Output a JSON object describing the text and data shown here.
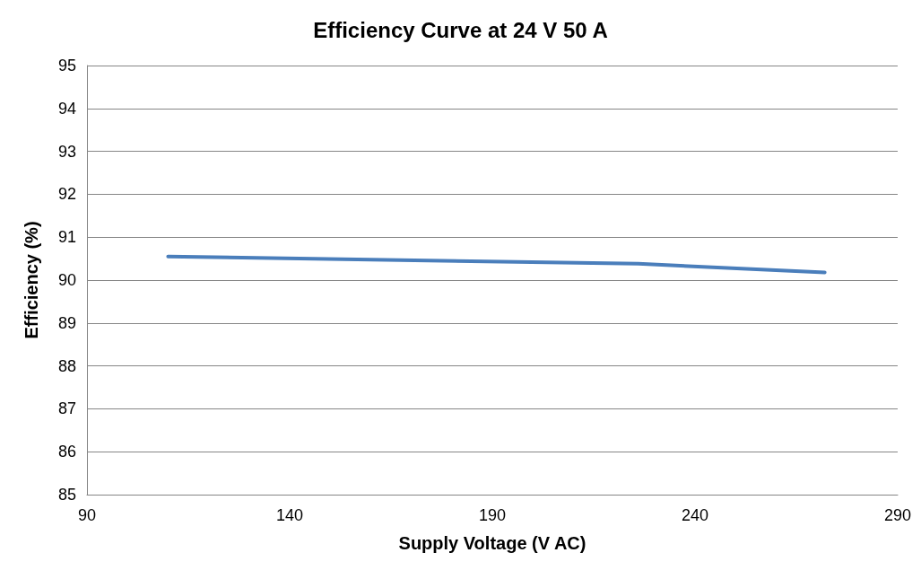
{
  "chart_data": {
    "type": "line",
    "title": "Efficiency Curve at 24 V 50 A",
    "xlabel": "Supply Voltage (V AC)",
    "ylabel": "Efficiency (%)",
    "x": [
      110,
      226,
      272
    ],
    "series": [
      {
        "color": "#4a7ebb",
        "values": [
          90.55,
          90.38,
          90.18
        ]
      }
    ],
    "xlim": [
      90,
      290
    ],
    "xticks": [
      90,
      140,
      190,
      240,
      290
    ],
    "ylim": [
      85,
      95
    ],
    "yticks": [
      85,
      86,
      87,
      88,
      89,
      90,
      91,
      92,
      93,
      94,
      95
    ],
    "grid": "y",
    "marker": "none",
    "line_style": "solid"
  }
}
